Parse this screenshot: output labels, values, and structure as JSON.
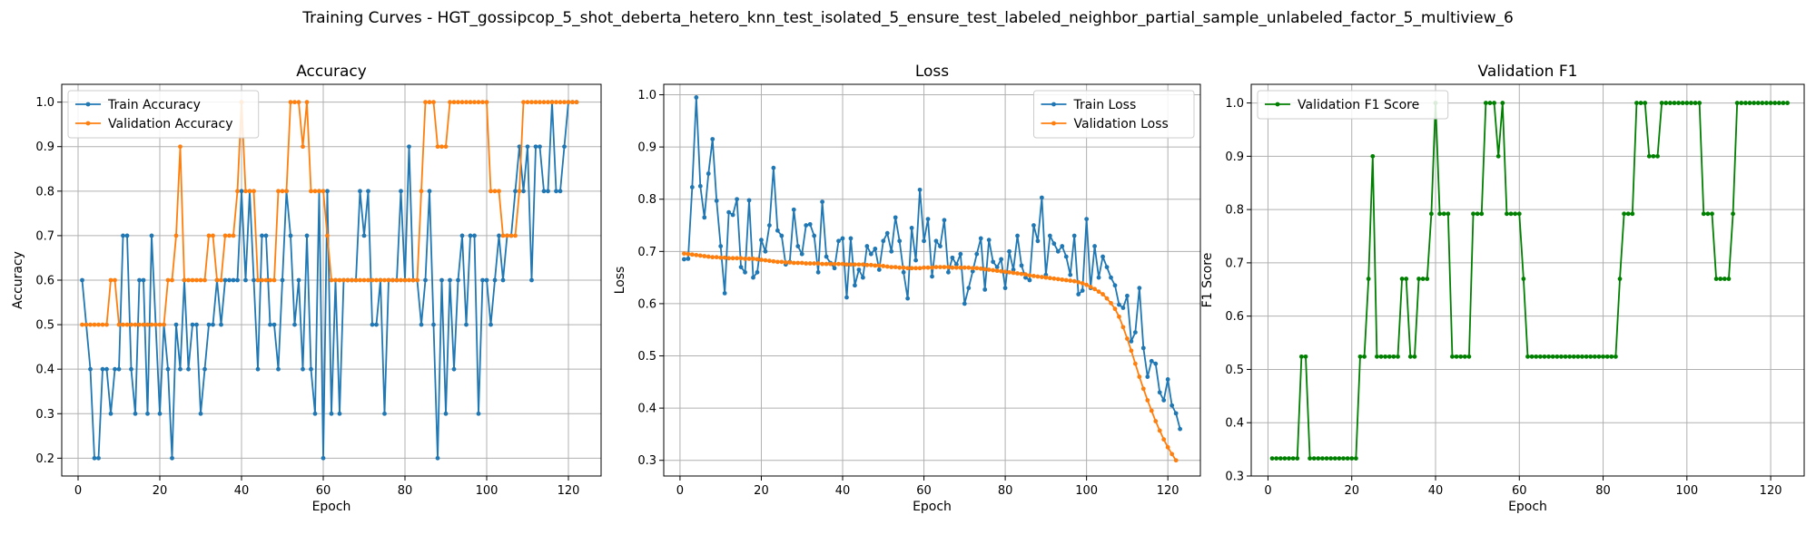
{
  "figure_title": "Training Curves - HGT_gossipcop_5_shot_deberta_hetero_knn_test_isolated_5_ensure_test_labeled_neighbor_partial_sample_unlabeled_factor_5_multiview_6",
  "colors": {
    "blue": "#1f77b4",
    "orange": "#ff7f0e",
    "green": "#008000",
    "grid": "#b0b0b0"
  },
  "chart_data": [
    {
      "type": "line",
      "title": "Accuracy",
      "xlabel": "Epoch",
      "ylabel": "Accuracy",
      "xlim": [
        -4,
        128
      ],
      "ylim": [
        0.16,
        1.04
      ],
      "xticks": [
        0,
        20,
        40,
        60,
        80,
        100,
        120
      ],
      "yticks": [
        0.2,
        0.3,
        0.4,
        0.5,
        0.6,
        0.7,
        0.8,
        0.9,
        1.0
      ],
      "legend": "upper-left",
      "grid": true,
      "series": [
        {
          "name": "Train Accuracy",
          "color": "#1f77b4",
          "x_start": 1,
          "values": [
            0.6,
            0.5,
            0.4,
            0.2,
            0.2,
            0.4,
            0.4,
            0.3,
            0.4,
            0.4,
            0.7,
            0.7,
            0.4,
            0.3,
            0.6,
            0.6,
            0.3,
            0.7,
            0.5,
            0.3,
            0.5,
            0.4,
            0.2,
            0.5,
            0.4,
            0.6,
            0.4,
            0.5,
            0.5,
            0.3,
            0.4,
            0.5,
            0.5,
            0.6,
            0.5,
            0.6,
            0.6,
            0.6,
            0.6,
            0.8,
            0.6,
            0.8,
            0.6,
            0.4,
            0.7,
            0.7,
            0.5,
            0.5,
            0.4,
            0.6,
            0.8,
            0.7,
            0.5,
            0.6,
            0.4,
            0.7,
            0.4,
            0.3,
            0.8,
            0.2,
            0.8,
            0.3,
            0.6,
            0.3,
            0.6,
            0.6,
            0.6,
            0.6,
            0.8,
            0.7,
            0.8,
            0.5,
            0.5,
            0.6,
            0.3,
            0.6,
            0.6,
            0.6,
            0.8,
            0.6,
            0.9,
            0.6,
            0.6,
            0.5,
            0.6,
            0.8,
            0.5,
            0.2,
            0.6,
            0.3,
            0.6,
            0.4,
            0.6,
            0.7,
            0.5,
            0.7,
            0.7,
            0.3,
            0.6,
            0.6,
            0.5,
            0.6,
            0.7,
            0.6,
            0.7,
            0.7,
            0.8,
            0.9,
            0.8,
            0.9,
            0.6,
            0.9,
            0.9,
            0.8,
            0.8,
            1.0,
            0.8,
            0.8,
            0.9,
            1.0,
            1.0,
            1.0
          ]
        },
        {
          "name": "Validation Accuracy",
          "color": "#ff7f0e",
          "x_start": 1,
          "values": [
            0.5,
            0.5,
            0.5,
            0.5,
            0.5,
            0.5,
            0.5,
            0.6,
            0.6,
            0.5,
            0.5,
            0.5,
            0.5,
            0.5,
            0.5,
            0.5,
            0.5,
            0.5,
            0.5,
            0.5,
            0.5,
            0.6,
            0.6,
            0.7,
            0.9,
            0.6,
            0.6,
            0.6,
            0.6,
            0.6,
            0.6,
            0.7,
            0.7,
            0.6,
            0.6,
            0.7,
            0.7,
            0.7,
            0.8,
            1.0,
            0.8,
            0.8,
            0.8,
            0.6,
            0.6,
            0.6,
            0.6,
            0.6,
            0.8,
            0.8,
            0.8,
            1.0,
            1.0,
            1.0,
            0.9,
            1.0,
            0.8,
            0.8,
            0.8,
            0.8,
            0.7,
            0.6,
            0.6,
            0.6,
            0.6,
            0.6,
            0.6,
            0.6,
            0.6,
            0.6,
            0.6,
            0.6,
            0.6,
            0.6,
            0.6,
            0.6,
            0.6,
            0.6,
            0.6,
            0.6,
            0.6,
            0.6,
            0.6,
            0.8,
            1.0,
            1.0,
            1.0,
            0.9,
            0.9,
            0.9,
            1.0,
            1.0,
            1.0,
            1.0,
            1.0,
            1.0,
            1.0,
            1.0,
            1.0,
            1.0,
            0.8,
            0.8,
            0.8,
            0.7,
            0.7,
            0.7,
            0.7,
            0.8,
            1.0,
            1.0,
            1.0,
            1.0,
            1.0,
            1.0,
            1.0,
            1.0,
            1.0,
            1.0,
            1.0,
            1.0,
            1.0,
            1.0
          ]
        }
      ]
    },
    {
      "type": "line",
      "title": "Loss",
      "xlabel": "Epoch",
      "ylabel": "Loss",
      "xlim": [
        -4,
        128
      ],
      "ylim": [
        0.27,
        1.02
      ],
      "xticks": [
        0,
        20,
        40,
        60,
        80,
        100,
        120
      ],
      "yticks": [
        0.3,
        0.4,
        0.5,
        0.6,
        0.7,
        0.8,
        0.9,
        1.0
      ],
      "legend": "upper-right",
      "grid": true,
      "series": [
        {
          "name": "Train Loss",
          "color": "#1f77b4",
          "x_start": 1,
          "values": [
            0.685,
            0.686,
            0.823,
            0.995,
            0.825,
            0.765,
            0.849,
            0.915,
            0.797,
            0.71,
            0.62,
            0.775,
            0.77,
            0.8,
            0.67,
            0.66,
            0.798,
            0.65,
            0.66,
            0.722,
            0.7,
            0.75,
            0.86,
            0.74,
            0.73,
            0.675,
            0.68,
            0.78,
            0.71,
            0.695,
            0.75,
            0.752,
            0.73,
            0.66,
            0.795,
            0.69,
            0.678,
            0.668,
            0.72,
            0.725,
            0.612,
            0.725,
            0.635,
            0.665,
            0.65,
            0.71,
            0.695,
            0.705,
            0.665,
            0.72,
            0.735,
            0.7,
            0.765,
            0.72,
            0.66,
            0.61,
            0.745,
            0.683,
            0.818,
            0.72,
            0.762,
            0.652,
            0.72,
            0.71,
            0.76,
            0.66,
            0.688,
            0.675,
            0.695,
            0.6,
            0.63,
            0.662,
            0.695,
            0.725,
            0.627,
            0.722,
            0.68,
            0.67,
            0.685,
            0.63,
            0.7,
            0.665,
            0.73,
            0.673,
            0.65,
            0.645,
            0.75,
            0.72,
            0.803,
            0.655,
            0.73,
            0.715,
            0.7,
            0.71,
            0.69,
            0.655,
            0.73,
            0.618,
            0.625,
            0.762,
            0.63,
            0.71,
            0.65,
            0.69,
            0.67,
            0.65,
            0.635,
            0.598,
            0.592,
            0.615,
            0.528,
            0.545,
            0.63,
            0.515,
            0.46,
            0.49,
            0.485,
            0.43,
            0.415,
            0.455,
            0.405,
            0.39,
            0.36
          ]
        },
        {
          "name": "Validation Loss",
          "color": "#ff7f0e",
          "x_start": 1,
          "values": [
            0.696,
            0.695,
            0.694,
            0.693,
            0.692,
            0.691,
            0.69,
            0.689,
            0.689,
            0.688,
            0.688,
            0.687,
            0.687,
            0.687,
            0.687,
            0.686,
            0.686,
            0.686,
            0.685,
            0.684,
            0.683,
            0.682,
            0.681,
            0.68,
            0.68,
            0.679,
            0.679,
            0.678,
            0.678,
            0.678,
            0.677,
            0.677,
            0.677,
            0.677,
            0.676,
            0.676,
            0.676,
            0.676,
            0.676,
            0.676,
            0.675,
            0.675,
            0.675,
            0.675,
            0.675,
            0.674,
            0.674,
            0.673,
            0.673,
            0.672,
            0.671,
            0.67,
            0.67,
            0.669,
            0.669,
            0.668,
            0.668,
            0.668,
            0.668,
            0.669,
            0.669,
            0.669,
            0.67,
            0.67,
            0.67,
            0.67,
            0.669,
            0.669,
            0.669,
            0.669,
            0.669,
            0.668,
            0.668,
            0.667,
            0.666,
            0.665,
            0.664,
            0.663,
            0.662,
            0.661,
            0.66,
            0.659,
            0.658,
            0.657,
            0.656,
            0.654,
            0.653,
            0.652,
            0.651,
            0.65,
            0.649,
            0.648,
            0.647,
            0.646,
            0.645,
            0.644,
            0.643,
            0.641,
            0.639,
            0.636,
            0.632,
            0.628,
            0.623,
            0.618,
            0.61,
            0.601,
            0.59,
            0.575,
            0.555,
            0.533,
            0.51,
            0.485,
            0.46,
            0.437,
            0.415,
            0.395,
            0.375,
            0.357,
            0.34,
            0.325,
            0.312,
            0.3
          ]
        }
      ]
    },
    {
      "type": "line",
      "title": "Validation F1",
      "xlabel": "Epoch",
      "ylabel": "F1 Score",
      "xlim": [
        -4,
        128
      ],
      "ylim": [
        0.3,
        1.035
      ],
      "xticks": [
        0,
        20,
        40,
        60,
        80,
        100,
        120
      ],
      "yticks": [
        0.3,
        0.4,
        0.5,
        0.6,
        0.7,
        0.8,
        0.9,
        1.0
      ],
      "legend": "upper-left",
      "grid": true,
      "series": [
        {
          "name": "Validation F1 Score",
          "color": "#008000",
          "x_start": 1,
          "values": [
            0.333,
            0.333,
            0.333,
            0.333,
            0.333,
            0.333,
            0.333,
            0.524,
            0.524,
            0.333,
            0.333,
            0.333,
            0.333,
            0.333,
            0.333,
            0.333,
            0.333,
            0.333,
            0.333,
            0.333,
            0.333,
            0.524,
            0.524,
            0.67,
            0.9,
            0.524,
            0.524,
            0.524,
            0.524,
            0.524,
            0.524,
            0.67,
            0.67,
            0.524,
            0.524,
            0.67,
            0.67,
            0.67,
            0.792,
            1.0,
            0.792,
            0.792,
            0.792,
            0.524,
            0.524,
            0.524,
            0.524,
            0.524,
            0.792,
            0.792,
            0.792,
            1.0,
            1.0,
            1.0,
            0.9,
            1.0,
            0.792,
            0.792,
            0.792,
            0.792,
            0.67,
            0.524,
            0.524,
            0.524,
            0.524,
            0.524,
            0.524,
            0.524,
            0.524,
            0.524,
            0.524,
            0.524,
            0.524,
            0.524,
            0.524,
            0.524,
            0.524,
            0.524,
            0.524,
            0.524,
            0.524,
            0.524,
            0.524,
            0.67,
            0.792,
            0.792,
            0.792,
            1.0,
            1.0,
            1.0,
            0.9,
            0.9,
            0.9,
            1.0,
            1.0,
            1.0,
            1.0,
            1.0,
            1.0,
            1.0,
            1.0,
            1.0,
            1.0,
            0.792,
            0.792,
            0.792,
            0.67,
            0.67,
            0.67,
            0.67,
            0.792,
            1.0,
            1.0,
            1.0,
            1.0,
            1.0,
            1.0,
            1.0,
            1.0,
            1.0,
            1.0,
            1.0,
            1.0,
            1.0
          ]
        }
      ]
    }
  ]
}
